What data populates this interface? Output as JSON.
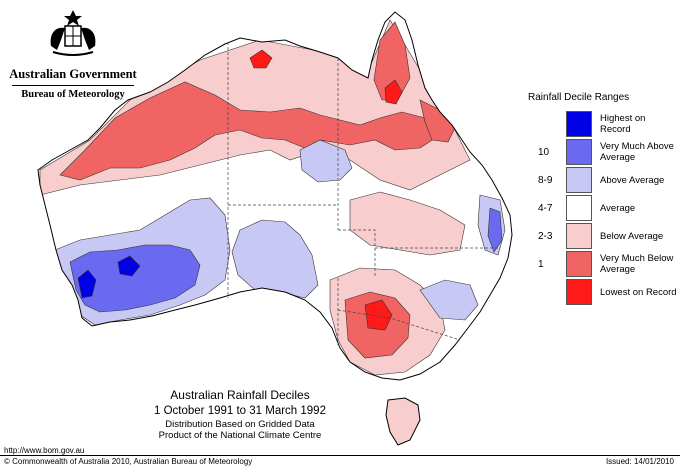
{
  "header": {
    "organisation": "Australian Government",
    "department": "Bureau of Meteorology",
    "crest_icon": "coat-of-arms-icon"
  },
  "legend": {
    "title": "Rainfall Decile Ranges",
    "items": [
      {
        "range": "",
        "label": "Highest on Record",
        "color": "#0000e6"
      },
      {
        "range": "10",
        "label": "Very Much Above Average",
        "color": "#6a6af0"
      },
      {
        "range": "8-9",
        "label": "Above Average",
        "color": "#c8c8f5"
      },
      {
        "range": "4-7",
        "label": "Average",
        "color": "#ffffff"
      },
      {
        "range": "2-3",
        "label": "Below Average",
        "color": "#f8cdcd"
      },
      {
        "range": "1",
        "label": "Very Much Below Average",
        "color": "#f06464"
      },
      {
        "range": "",
        "label": "Lowest on Record",
        "color": "#ff1a1a"
      }
    ]
  },
  "caption": {
    "title": "Australian Rainfall Deciles",
    "period": "1 October 1991 to 31 March 1992",
    "line3": "Distribution Based on Gridded Data",
    "line4": "Product of the National Climate Centre"
  },
  "footer": {
    "url": "http://www.bom.gov.au",
    "copyright": "© Commonwealth of Australia 2010, Australian Bureau of Meteorology",
    "issued": "Issued: 14/01/2010"
  },
  "map": {
    "region": "Australia",
    "colors": {
      "outline": "#000000",
      "state_border": "#444444",
      "average": "#ffffff",
      "below": "#f8cdcd",
      "very_much_below": "#f06464",
      "lowest": "#ff1a1a",
      "above": "#c8c8f5",
      "very_much_above": "#6a6af0",
      "highest": "#0000e6"
    }
  }
}
